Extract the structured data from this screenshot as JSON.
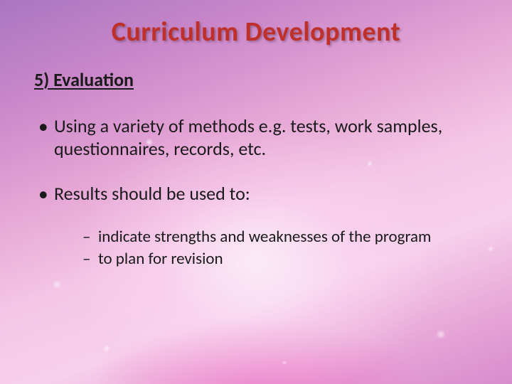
{
  "title": {
    "text": "Curriculum Development",
    "color": "#c0302a",
    "fontsize": 38
  },
  "subtitle": {
    "text": "5) Evaluation",
    "fontsize": 26,
    "color": "#1a1a1a"
  },
  "bullets": {
    "fontsize_l1": 26,
    "fontsize_l2": 23,
    "color": "#1a1a1a",
    "items": [
      {
        "text": "Using a variety of methods e.g. tests, work samples, questionnaires, records, etc."
      },
      {
        "text": "Results should be used to:",
        "children": [
          {
            "text": "indicate strengths and weaknesses of the program"
          },
          {
            "text": "to plan for revision"
          }
        ]
      }
    ]
  },
  "background": {
    "top_left": "#a976c2",
    "mid": "#f4c6e6",
    "bottom_right": "#d78ccc",
    "splash_highlight": "#ffffff"
  }
}
